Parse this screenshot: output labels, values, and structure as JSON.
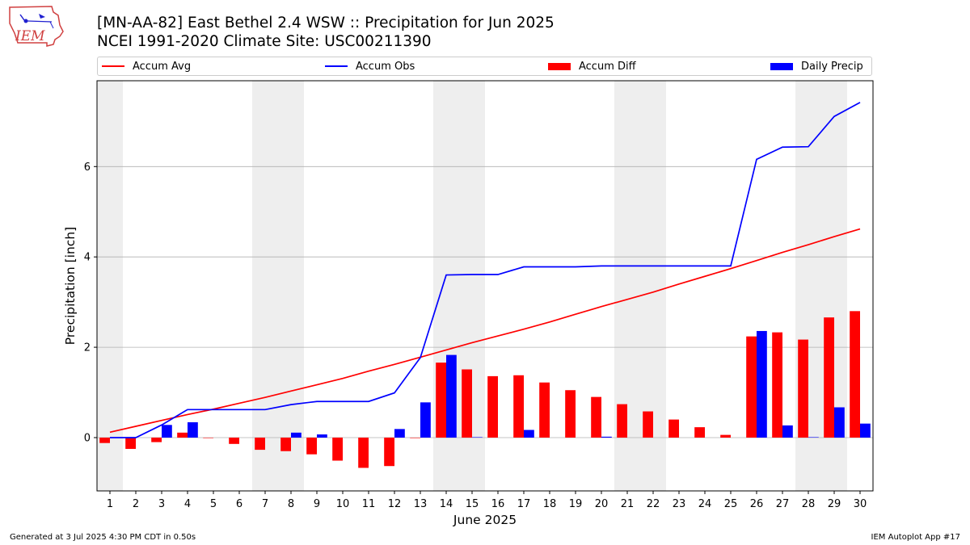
{
  "header": {
    "logo_text": "IEM",
    "title_line1": "[MN-AA-82] East Bethel 2.4 WSW :: Precipitation for Jun 2025",
    "title_line2": "NCEI 1991-2020 Climate Site: USC00211390"
  },
  "legend": {
    "items": [
      {
        "label": "Accum Avg",
        "kind": "line",
        "color": "#ff0000"
      },
      {
        "label": "Accum Obs",
        "kind": "line",
        "color": "#0000ff"
      },
      {
        "label": "Accum Diff",
        "kind": "bar",
        "color": "#ff0000"
      },
      {
        "label": "Daily Precip",
        "kind": "bar",
        "color": "#0000ff"
      }
    ]
  },
  "footer": {
    "left": "Generated at 3 Jul 2025 4:30 PM CDT in 0.50s",
    "right": "IEM Autoplot App #17"
  },
  "chart_data": {
    "type": "bar",
    "xlabel": "June 2025",
    "ylabel": "Precipitation [inch]",
    "ylim": [
      -1.18,
      7.9
    ],
    "xlim": [
      0.5,
      30.5
    ],
    "yticks": [
      0,
      2,
      4,
      6
    ],
    "grid": "y",
    "legend_position": "top",
    "weekend_days": [
      1,
      7,
      8,
      14,
      15,
      21,
      22,
      28,
      29
    ],
    "categories": [
      "1",
      "2",
      "3",
      "4",
      "5",
      "6",
      "7",
      "8",
      "9",
      "10",
      "11",
      "12",
      "13",
      "14",
      "15",
      "16",
      "17",
      "18",
      "19",
      "20",
      "21",
      "22",
      "23",
      "24",
      "25",
      "26",
      "27",
      "28",
      "29",
      "30"
    ],
    "colors": {
      "avg": "#ff0000",
      "obs": "#0000ff",
      "weekend_shade": "#eeeeee",
      "grid": "#b0b0b0"
    },
    "series": [
      {
        "name": "Accum Avg",
        "kind": "line",
        "values": [
          0.12,
          0.25,
          0.38,
          0.51,
          0.63,
          0.76,
          0.89,
          1.03,
          1.17,
          1.31,
          1.47,
          1.62,
          1.78,
          1.94,
          2.1,
          2.25,
          2.4,
          2.56,
          2.73,
          2.9,
          3.06,
          3.22,
          3.4,
          3.57,
          3.74,
          3.92,
          4.1,
          4.27,
          4.45,
          4.62
        ]
      },
      {
        "name": "Accum Obs",
        "kind": "line",
        "values": [
          0.0,
          0.0,
          0.28,
          0.62,
          0.62,
          0.62,
          0.62,
          0.73,
          0.8,
          0.8,
          0.8,
          0.99,
          1.77,
          3.6,
          3.61,
          3.61,
          3.78,
          3.78,
          3.78,
          3.8,
          3.8,
          3.8,
          3.8,
          3.8,
          3.8,
          6.16,
          6.43,
          6.44,
          7.11,
          7.42
        ]
      },
      {
        "name": "Accum Diff",
        "kind": "bar",
        "values": [
          -0.12,
          -0.25,
          -0.1,
          0.11,
          -0.01,
          -0.14,
          -0.27,
          -0.3,
          -0.37,
          -0.51,
          -0.67,
          -0.63,
          -0.01,
          1.66,
          1.51,
          1.36,
          1.38,
          1.22,
          1.05,
          0.9,
          0.74,
          0.58,
          0.4,
          0.23,
          0.06,
          2.24,
          2.33,
          2.17,
          2.66,
          2.8
        ]
      },
      {
        "name": "Daily Precip",
        "kind": "bar",
        "values": [
          0.0,
          0.0,
          0.28,
          0.34,
          0.0,
          0.0,
          0.0,
          0.11,
          0.07,
          0.0,
          0.0,
          0.19,
          0.78,
          1.83,
          0.01,
          0.0,
          0.17,
          0.0,
          0.0,
          0.02,
          0.0,
          0.0,
          0.0,
          0.0,
          0.0,
          2.36,
          0.27,
          0.01,
          0.67,
          0.31
        ]
      }
    ]
  }
}
